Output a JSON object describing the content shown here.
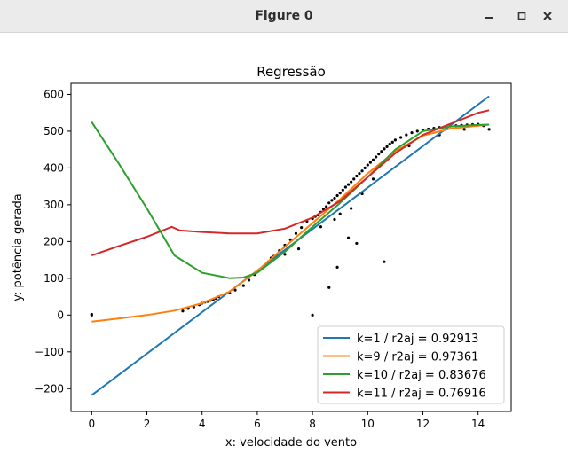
{
  "window": {
    "title": "Figure 0",
    "controls": [
      "minimize-icon",
      "maximize-icon",
      "close-icon"
    ]
  },
  "chart_data": {
    "type": "line",
    "title": "Regressão",
    "xlabel": "x: velocidade do vento",
    "ylabel": "y: potência gerada",
    "xlim": [
      -0.75,
      15.2
    ],
    "ylim": [
      -262,
      630
    ],
    "xticks": [
      0,
      2,
      4,
      6,
      8,
      10,
      12,
      14
    ],
    "yticks": [
      -200,
      -100,
      0,
      100,
      200,
      300,
      400,
      500,
      600
    ],
    "ytick_labels": [
      "−200",
      "−100",
      "0",
      "100",
      "200",
      "300",
      "400",
      "500",
      "600"
    ],
    "legend_position": "lower right",
    "series": [
      {
        "name": "k=1 /  r2aj = 0.92913",
        "color": "#1f77b4",
        "x": [
          0,
          14.4
        ],
        "y": [
          -218,
          595
        ]
      },
      {
        "name": "k=9 /  r2aj = 0.97361",
        "color": "#ff7f0e",
        "x": [
          0,
          1,
          2,
          3,
          4,
          5,
          6,
          7,
          8,
          9,
          10,
          11,
          12,
          13,
          14,
          14.4
        ],
        "y": [
          -18,
          -9,
          0,
          12,
          32,
          64,
          120,
          186,
          250,
          315,
          385,
          445,
          488,
          507,
          515,
          518
        ]
      },
      {
        "name": "k=10 /  r2aj = 0.83676",
        "color": "#2ca02c",
        "x": [
          0,
          1,
          2,
          3,
          4,
          5,
          5.5,
          6,
          7,
          8,
          9,
          10,
          11,
          12,
          13,
          14,
          14.4
        ],
        "y": [
          525,
          410,
          290,
          162,
          115,
          100,
          102,
          115,
          172,
          240,
          305,
          375,
          450,
          500,
          513,
          517,
          518
        ]
      },
      {
        "name": "k=11 /  r2aj = 0.76916",
        "color": "#d62728",
        "x": [
          0,
          1,
          2,
          2.9,
          3.2,
          4,
          5,
          6,
          7,
          8,
          9,
          10,
          11,
          12,
          13,
          14,
          14.4
        ],
        "y": [
          162,
          188,
          213,
          240,
          230,
          226,
          222,
          222,
          235,
          265,
          310,
          375,
          440,
          490,
          520,
          550,
          557
        ]
      }
    ],
    "scatter": {
      "color": "#000000",
      "x": [
        0,
        0,
        3.3,
        3.5,
        3.7,
        3.9,
        4.0,
        4.1,
        4.2,
        4.3,
        4.4,
        4.5,
        4.6,
        4.8,
        5.0,
        5.2,
        5.5,
        5.7,
        5.9,
        6.0,
        6.2,
        6.4,
        6.6,
        6.8,
        7.0,
        7.2,
        7.4,
        7.6,
        7.8,
        8.0,
        8.1,
        8.2,
        8.3,
        8.4,
        8.5,
        8.6,
        8.7,
        8.8,
        8.9,
        9.0,
        9.1,
        9.2,
        9.3,
        9.4,
        9.5,
        9.6,
        9.7,
        9.8,
        9.9,
        10.0,
        10.1,
        10.2,
        10.3,
        10.4,
        10.5,
        10.6,
        10.7,
        10.8,
        10.9,
        11.0,
        11.2,
        11.4,
        11.6,
        11.8,
        12.0,
        12.2,
        12.4,
        12.6,
        12.8,
        13.0,
        13.2,
        13.4,
        13.6,
        13.8,
        14.0,
        14.2,
        14.4,
        8.0,
        8.6,
        8.9,
        9.3,
        9.6,
        10.6,
        6.5,
        7.0,
        7.5,
        8.3,
        8.8,
        9.0,
        9.4,
        9.8,
        10.2,
        11.5,
        12.6,
        13.5
      ],
      "y": [
        2,
        0,
        11,
        18,
        22,
        28,
        32,
        35,
        37,
        40,
        42,
        45,
        50,
        55,
        60,
        68,
        80,
        95,
        110,
        118,
        130,
        145,
        160,
        175,
        190,
        205,
        222,
        238,
        255,
        262,
        268,
        272,
        280,
        288,
        295,
        305,
        312,
        318,
        325,
        332,
        340,
        348,
        355,
        362,
        370,
        378,
        385,
        392,
        400,
        408,
        415,
        422,
        430,
        438,
        445,
        452,
        458,
        465,
        470,
        476,
        483,
        490,
        496,
        500,
        503,
        506,
        508,
        510,
        512,
        514,
        515,
        516,
        517,
        518,
        519,
        515,
        505,
        0,
        75,
        130,
        210,
        195,
        145,
        155,
        165,
        180,
        240,
        260,
        275,
        290,
        330,
        370,
        460,
        490,
        505
      ]
    }
  }
}
